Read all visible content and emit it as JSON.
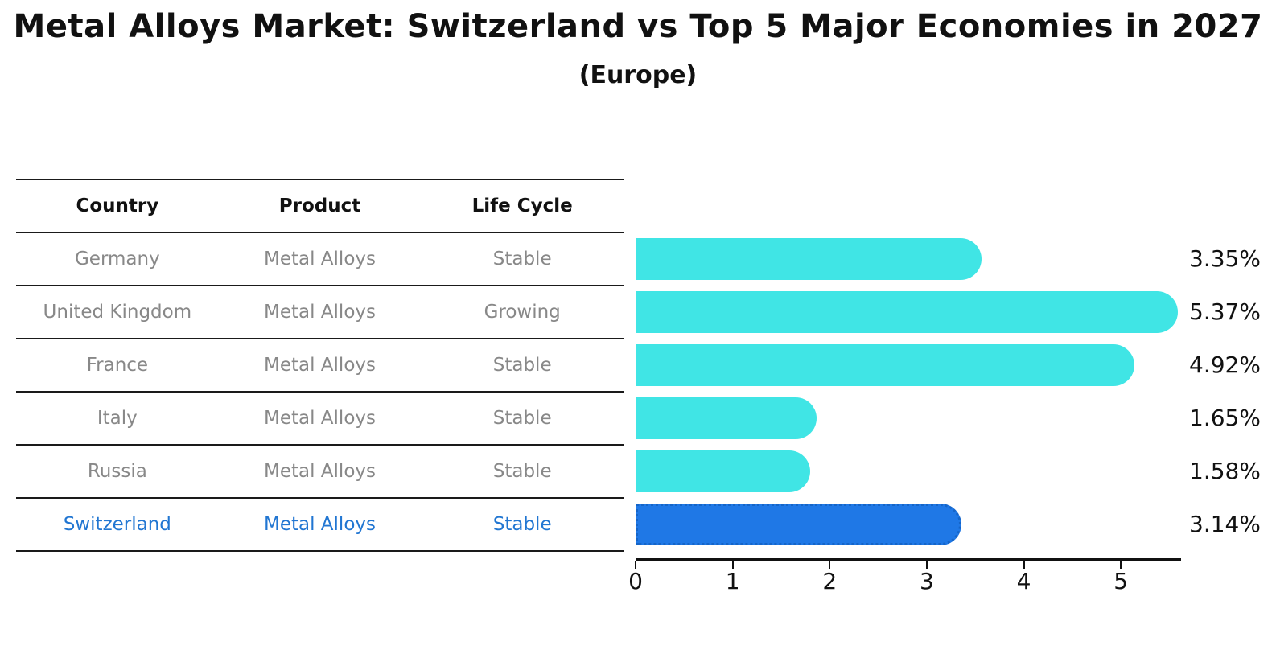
{
  "title": "Metal Alloys Market: Switzerland vs Top 5 Major Economies in 2027",
  "subtitle": "(Europe)",
  "table": {
    "headers": [
      "Country",
      "Product",
      "Life Cycle"
    ],
    "rows": [
      {
        "country": "Germany",
        "product": "Metal Alloys",
        "life_cycle": "Stable",
        "value_label": "3.35%"
      },
      {
        "country": "United Kingdom",
        "product": "Metal Alloys",
        "life_cycle": "Growing",
        "value_label": "5.37%"
      },
      {
        "country": "France",
        "product": "Metal Alloys",
        "life_cycle": "Stable",
        "value_label": "4.92%"
      },
      {
        "country": "Italy",
        "product": "Metal Alloys",
        "life_cycle": "Stable",
        "value_label": "1.65%"
      },
      {
        "country": "Russia",
        "product": "Metal Alloys",
        "life_cycle": "Stable",
        "value_label": "1.58%"
      },
      {
        "country": "Switzerland",
        "product": "Metal Alloys",
        "life_cycle": "Stable",
        "value_label": "3.14%"
      }
    ]
  },
  "chart_data": {
    "type": "bar",
    "orientation": "horizontal",
    "title": "Metal Alloys Market: Switzerland vs Top 5 Major Economies in 2027",
    "subtitle": "(Europe)",
    "categories": [
      "Germany",
      "United Kingdom",
      "France",
      "Italy",
      "Russia",
      "Switzerland"
    ],
    "values": [
      3.35,
      5.37,
      4.92,
      1.65,
      1.58,
      3.14
    ],
    "value_labels": [
      "3.35%",
      "5.37%",
      "4.92%",
      "1.65%",
      "1.58%",
      "3.14%"
    ],
    "highlight_index": 5,
    "xlim": [
      0,
      5.62
    ],
    "x_ticks": [
      0,
      1,
      2,
      3,
      4,
      5
    ],
    "grid": false,
    "legend": false,
    "colors": {
      "bar_default": "#40E5E5",
      "bar_highlight": "#1F78E6",
      "bar_highlight_edge": "#1565C8",
      "highlight_row_text": "#2176D2",
      "row_text": "#888888",
      "header_text": "#111111"
    }
  }
}
